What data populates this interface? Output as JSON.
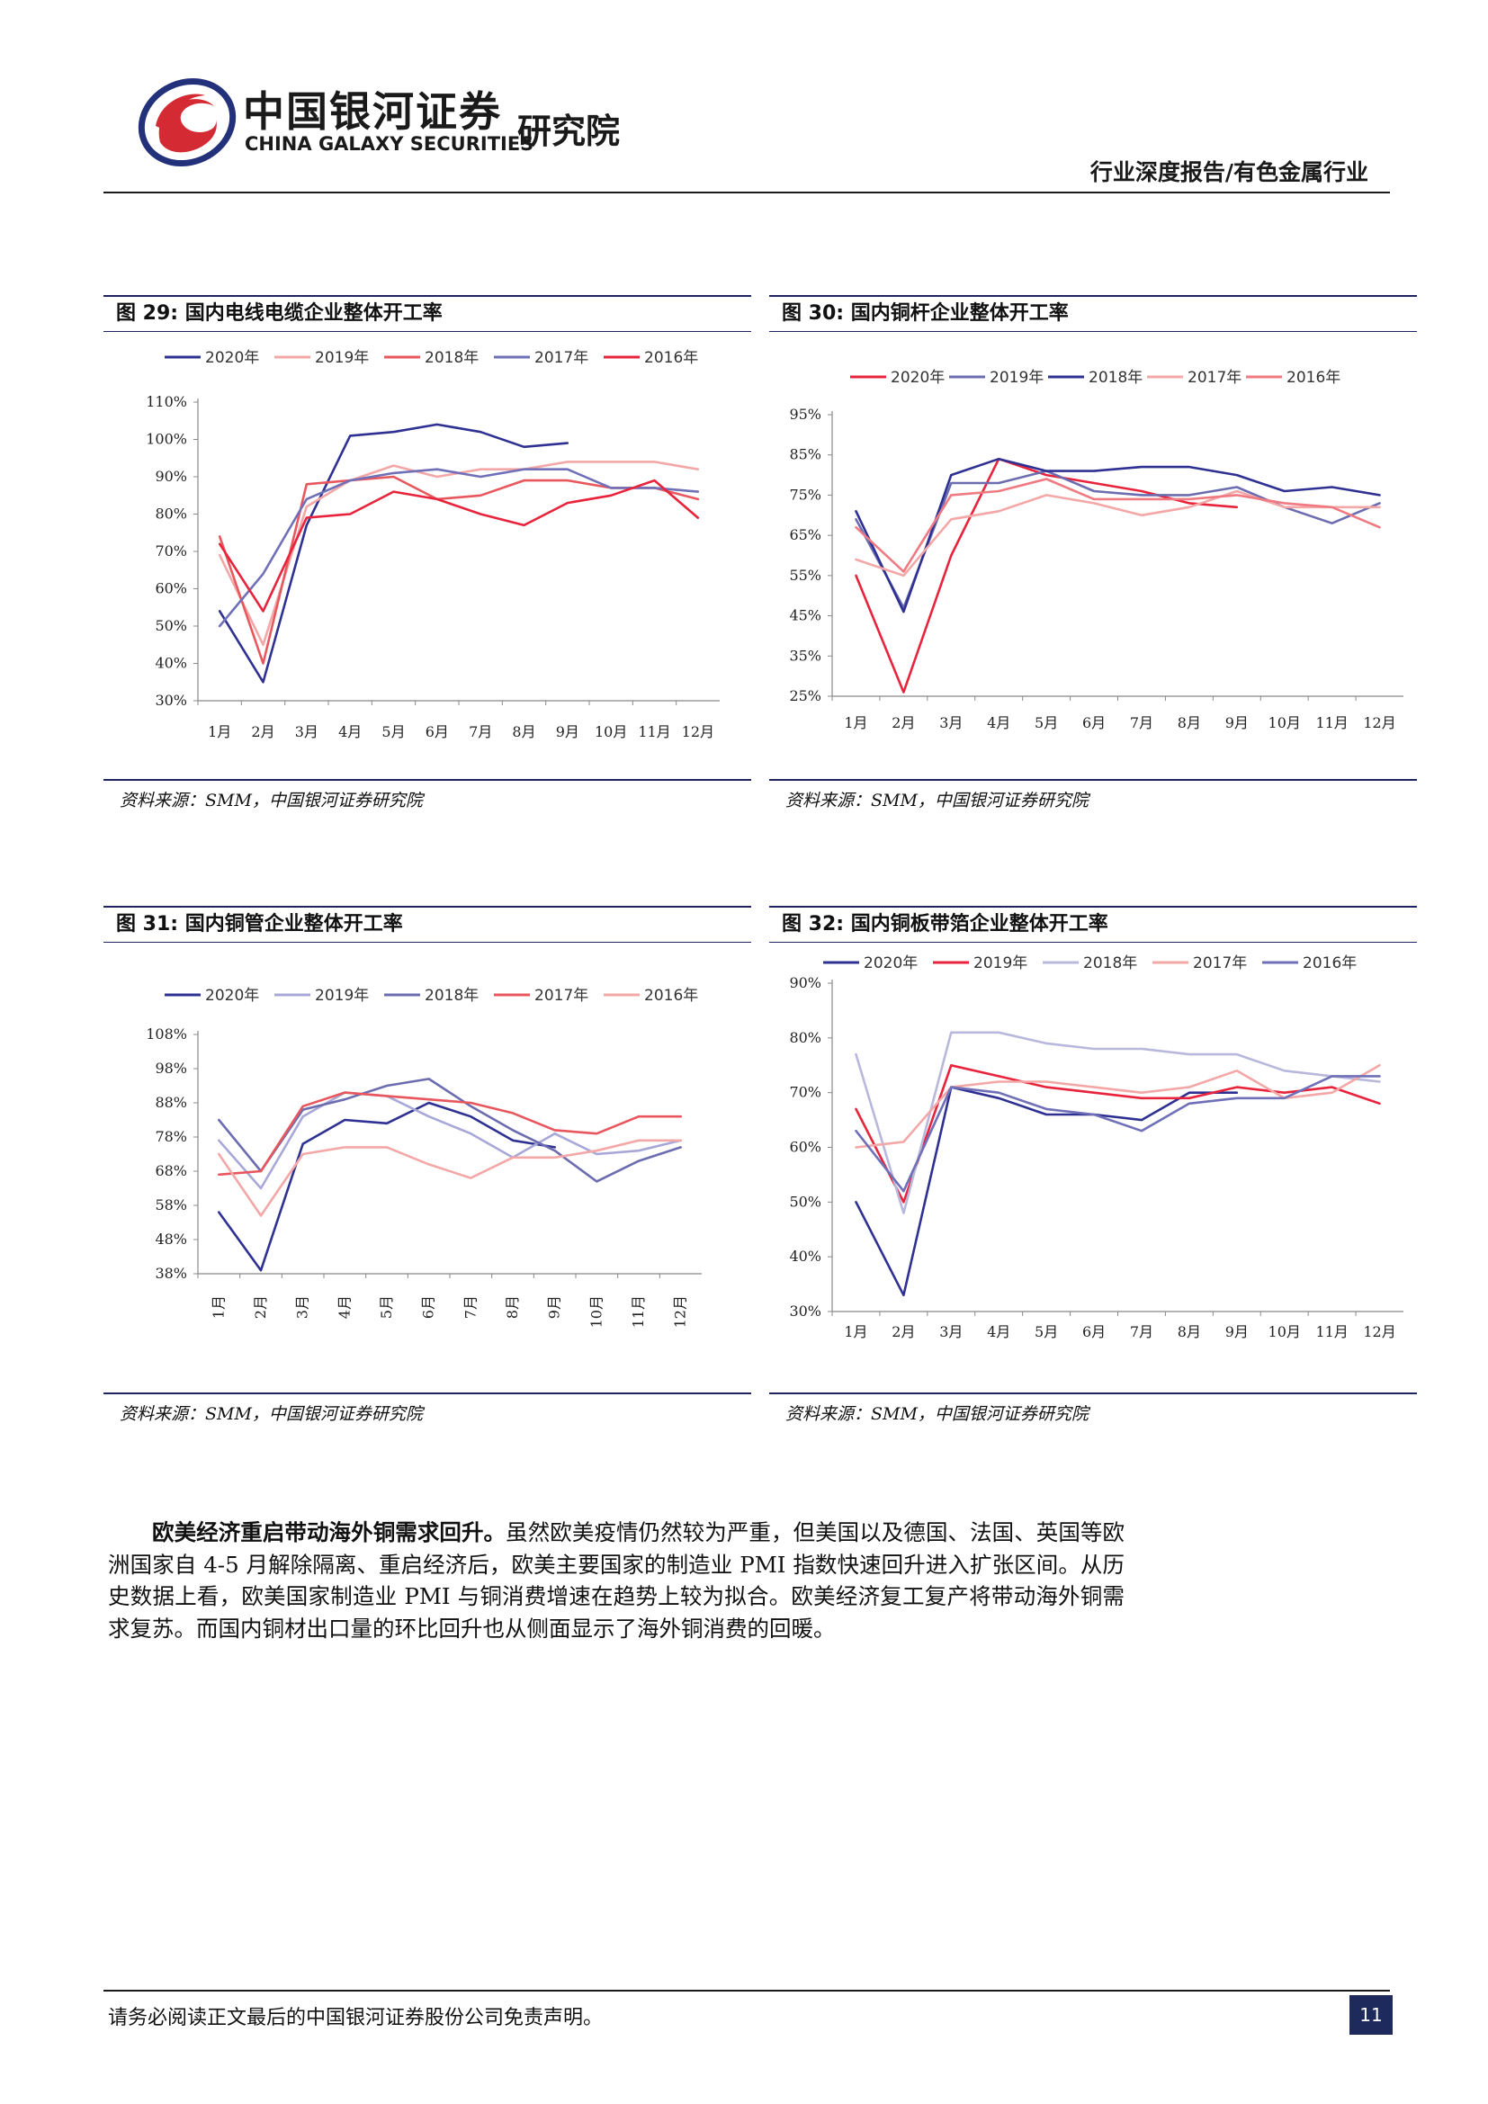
{
  "header": {
    "brand_cn": "中国银河证券",
    "brand_en": "CHINA GALAXY SECURITIES",
    "brand_sub": "研究院",
    "report_type": "行业深度报告/有色金属行业",
    "colors": {
      "logo_red": "#d42a34",
      "logo_blue": "#23307a"
    }
  },
  "figures": [
    {
      "label": "图 29:  国内电线电缆企业整体开工率",
      "source": "资料来源：SMM，中国银河证券研究院",
      "chart_data": {
        "type": "line",
        "title": "图 29:  国内电线电缆企业整体开工率",
        "categories": [
          "1月",
          "2月",
          "3月",
          "4月",
          "5月",
          "6月",
          "7月",
          "8月",
          "9月",
          "10月",
          "11月",
          "12月"
        ],
        "y_ticks": [
          "30%",
          "40%",
          "50%",
          "60%",
          "70%",
          "80%",
          "90%",
          "100%",
          "110%"
        ],
        "ylim": [
          30,
          110
        ],
        "legend_position": "top",
        "category_rotation": 0,
        "series": [
          {
            "name": "2020年",
            "color": "#2e3192",
            "values": [
              54,
              35,
              77,
              101,
              102,
              104,
              102,
              98,
              99,
              null,
              null,
              null
            ]
          },
          {
            "name": "2019年",
            "color": "#f4a7a7",
            "values": [
              69,
              45,
              82,
              89,
              93,
              90,
              92,
              92,
              94,
              94,
              94,
              92
            ]
          },
          {
            "name": "2018年",
            "color": "#e8575d",
            "values": [
              74,
              40,
              88,
              89,
              90,
              84,
              85,
              89,
              89,
              87,
              87,
              84
            ]
          },
          {
            "name": "2017年",
            "color": "#7070b8",
            "values": [
              50,
              64,
              84,
              89,
              91,
              92,
              90,
              92,
              92,
              87,
              87,
              86
            ]
          },
          {
            "name": "2016年",
            "color": "#e8243c",
            "values": [
              72,
              54,
              79,
              80,
              86,
              84,
              80,
              77,
              83,
              85,
              89,
              79
            ]
          }
        ]
      }
    },
    {
      "label": "图 30:  国内铜杆企业整体开工率",
      "source": "资料来源：SMM，中国银河证券研究院",
      "chart_data": {
        "type": "line",
        "title": "图 30:  国内铜杆企业整体开工率",
        "categories": [
          "1月",
          "2月",
          "3月",
          "4月",
          "5月",
          "6月",
          "7月",
          "8月",
          "9月",
          "10月",
          "11月",
          "12月"
        ],
        "y_ticks": [
          "25%",
          "35%",
          "45%",
          "55%",
          "65%",
          "75%",
          "85%",
          "95%"
        ],
        "ylim": [
          25,
          95
        ],
        "legend_position": "top",
        "category_rotation": 0,
        "series": [
          {
            "name": "2020年",
            "color": "#e8243c",
            "values": [
              55,
              26,
              60,
              84,
              80,
              78,
              76,
              73,
              72,
              null,
              null,
              null
            ]
          },
          {
            "name": "2019年",
            "color": "#6c6cb0",
            "values": [
              69,
              47,
              78,
              78,
              81,
              76,
              75,
              75,
              77,
              72,
              68,
              73
            ]
          },
          {
            "name": "2018年",
            "color": "#2e3192",
            "values": [
              71,
              46,
              80,
              84,
              81,
              81,
              82,
              82,
              80,
              76,
              77,
              75
            ]
          },
          {
            "name": "2017年",
            "color": "#f4a7a7",
            "values": [
              59,
              55,
              69,
              71,
              75,
              73,
              70,
              72,
              76,
              72,
              72,
              72
            ]
          },
          {
            "name": "2016年",
            "color": "#f07a82",
            "values": [
              67,
              56,
              75,
              76,
              79,
              74,
              74,
              74,
              75,
              73,
              72,
              67
            ]
          }
        ]
      }
    },
    {
      "label": "图 31:  国内铜管企业整体开工率",
      "source": "资料来源：SMM，中国银河证券研究院",
      "chart_data": {
        "type": "line",
        "title": "图 31:  国内铜管企业整体开工率",
        "categories": [
          "1月",
          "2月",
          "3月",
          "4月",
          "5月",
          "6月",
          "7月",
          "8月",
          "9月",
          "10月",
          "11月",
          "12月"
        ],
        "y_ticks": [
          "38%",
          "48%",
          "58%",
          "68%",
          "78%",
          "88%",
          "98%",
          "108%"
        ],
        "ylim": [
          38,
          108
        ],
        "legend_position": "top",
        "category_rotation": -90,
        "series": [
          {
            "name": "2020年",
            "color": "#2e3192",
            "values": [
              56,
              39,
              76,
              83,
              82,
              88,
              84,
              77,
              75,
              null,
              null,
              null
            ]
          },
          {
            "name": "2019年",
            "color": "#a8a8d8",
            "values": [
              77,
              63,
              84,
              91,
              90,
              84,
              79,
              72,
              79,
              73,
              74,
              77
            ]
          },
          {
            "name": "2018年",
            "color": "#6c6cb0",
            "values": [
              83,
              68,
              86,
              89,
              93,
              95,
              87,
              80,
              74,
              65,
              71,
              75
            ]
          },
          {
            "name": "2017年",
            "color": "#e8575d",
            "values": [
              67,
              68,
              87,
              91,
              90,
              89,
              88,
              85,
              80,
              79,
              84,
              84
            ]
          },
          {
            "name": "2016年",
            "color": "#f4a7a7",
            "values": [
              73,
              55,
              73,
              75,
              75,
              70,
              66,
              72,
              72,
              74,
              77,
              77
            ]
          }
        ]
      }
    },
    {
      "label": "图 32:  国内铜板带箔企业整体开工率",
      "source": "资料来源：SMM，中国银河证券研究院",
      "chart_data": {
        "type": "line",
        "title": "图 32:  国内铜板带箔企业整体开工率",
        "categories": [
          "1月",
          "2月",
          "3月",
          "4月",
          "5月",
          "6月",
          "7月",
          "8月",
          "9月",
          "10月",
          "11月",
          "12月"
        ],
        "y_ticks": [
          "30%",
          "40%",
          "50%",
          "60%",
          "70%",
          "80%",
          "90%"
        ],
        "ylim": [
          30,
          90
        ],
        "legend_position": "top",
        "category_rotation": 0,
        "series": [
          {
            "name": "2020年",
            "color": "#2e3192",
            "values": [
              50,
              33,
              71,
              69,
              66,
              66,
              65,
              70,
              70,
              null,
              null,
              null
            ]
          },
          {
            "name": "2019年",
            "color": "#e8243c",
            "values": [
              67,
              50,
              75,
              73,
              71,
              70,
              69,
              69,
              71,
              70,
              71,
              68
            ]
          },
          {
            "name": "2018年",
            "color": "#b8b8dc",
            "values": [
              77,
              48,
              81,
              81,
              79,
              78,
              78,
              77,
              77,
              74,
              73,
              72
            ]
          },
          {
            "name": "2017年",
            "color": "#f4a7a7",
            "values": [
              60,
              61,
              71,
              72,
              72,
              71,
              70,
              71,
              74,
              69,
              70,
              75
            ]
          },
          {
            "name": "2016年",
            "color": "#7070b8",
            "values": [
              63,
              52,
              71,
              70,
              67,
              66,
              63,
              68,
              69,
              69,
              73,
              73
            ]
          }
        ]
      }
    }
  ],
  "body": {
    "lead": "欧美经济重启带动海外铜需求回升。",
    "text": "虽然欧美疫情仍然较为严重，但美国以及德国、法国、英国等欧洲国家自 4-5 月解除隔离、重启经济后，欧美主要国家的制造业 PMI 指数快速回升进入扩张区间。从历史数据上看，欧美国家制造业 PMI 与铜消费增速在趋势上较为拟合。欧美经济复工复产将带动海外铜需求复苏。而国内铜材出口量的环比回升也从侧面显示了海外铜消费的回暖。"
  },
  "footer": {
    "disclaimer": "请务必阅读正文最后的中国银河证券股份公司免责声明。",
    "page": "11"
  }
}
